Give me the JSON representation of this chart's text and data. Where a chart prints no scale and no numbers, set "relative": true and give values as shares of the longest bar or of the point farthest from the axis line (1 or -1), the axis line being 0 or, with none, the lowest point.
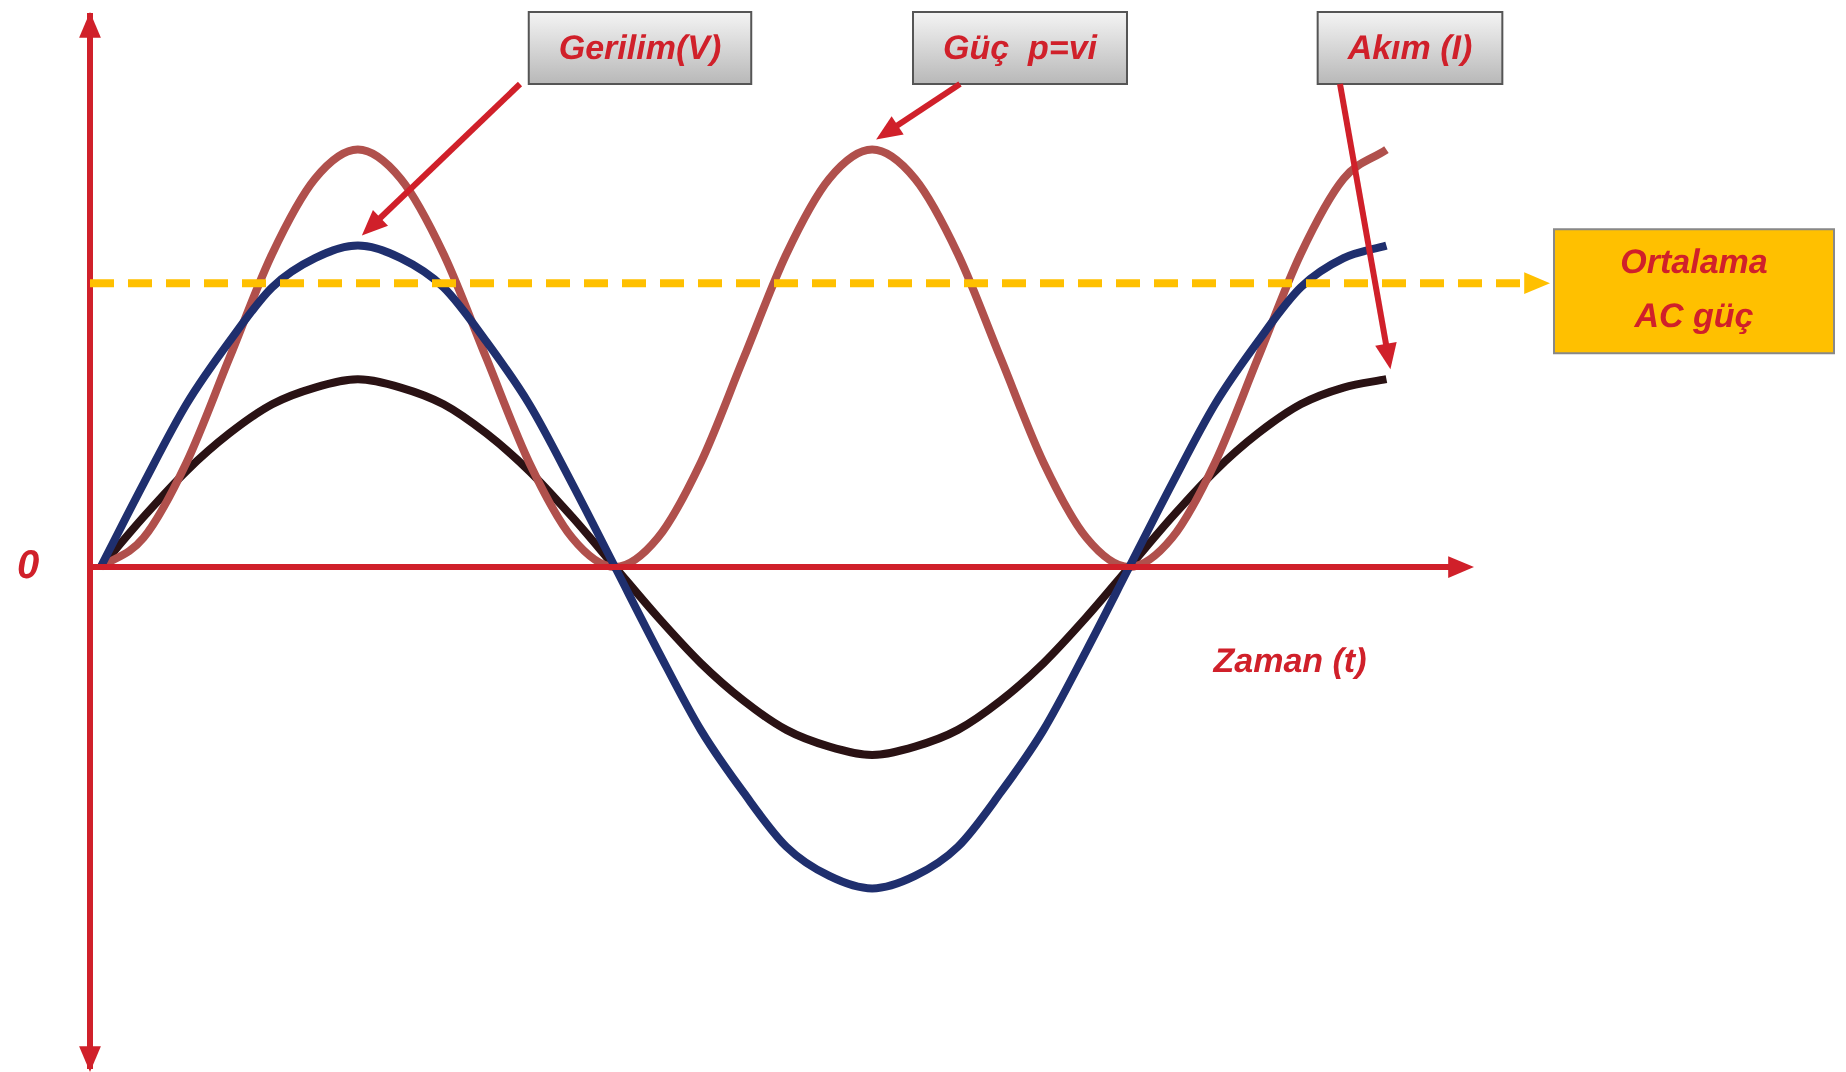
{
  "chart_data": {
    "type": "line",
    "relative": true,
    "marker": "none",
    "xlabel": "Zaman (t)",
    "categories": [
      null,
      null,
      null,
      null,
      null,
      null,
      null,
      null,
      null,
      null,
      null,
      null,
      null,
      null,
      null,
      null,
      null,
      null,
      null,
      null,
      null,
      null,
      null,
      null,
      null,
      null,
      null,
      null,
      null,
      null,
      null
    ],
    "series": [
      {
        "name": "Gerilim(V)",
        "color": "#1f2f6e",
        "values": [
          0,
          0.2,
          0.39,
          0.54,
          0.67,
          0.74,
          0.77,
          0.74,
          0.67,
          0.54,
          0.39,
          0.2,
          0,
          -0.2,
          -0.39,
          -0.54,
          -0.67,
          -0.74,
          -0.77,
          -0.74,
          -0.67,
          -0.54,
          -0.39,
          -0.2,
          0,
          0.2,
          0.39,
          0.54,
          0.67,
          0.74,
          0.77
        ]
      },
      {
        "name": "Güç  p=vi",
        "color": "#b0504c",
        "values": [
          0,
          0.07,
          0.25,
          0.5,
          0.75,
          0.93,
          1,
          0.93,
          0.75,
          0.5,
          0.25,
          0.07,
          0,
          0.07,
          0.25,
          0.5,
          0.75,
          0.93,
          1,
          0.93,
          0.75,
          0.5,
          0.25,
          0.07,
          0,
          0.07,
          0.25,
          0.5,
          0.75,
          0.93,
          1
        ]
      },
      {
        "name": "Akım (I)",
        "color": "#2a1214",
        "values": [
          0,
          0.12,
          0.23,
          0.32,
          0.39,
          0.43,
          0.45,
          0.43,
          0.39,
          0.32,
          0.23,
          0.12,
          0,
          -0.12,
          -0.23,
          -0.32,
          -0.39,
          -0.43,
          -0.45,
          -0.43,
          -0.39,
          -0.32,
          -0.23,
          -0.12,
          0,
          0.12,
          0.23,
          0.32,
          0.39,
          0.43,
          0.45
        ]
      }
    ],
    "ref_lines": [
      {
        "axis": "y",
        "value": 0,
        "color": "#d0202a",
        "line_style": "solid"
      },
      {
        "axis": "y",
        "value": 0.68,
        "label": "Ortalama AC güç",
        "color": "#ffc000",
        "line_style": "dashed"
      }
    ],
    "annotations": [
      "0"
    ]
  }
}
